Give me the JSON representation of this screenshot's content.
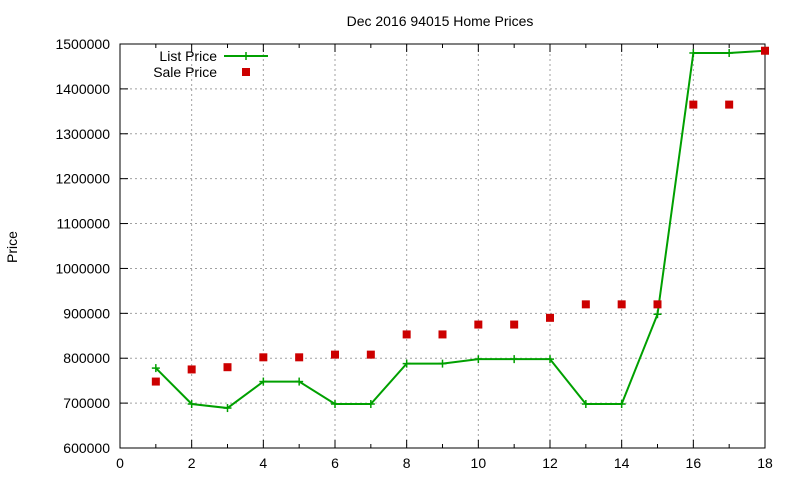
{
  "chart_data": {
    "type": "line",
    "title": "Dec 2016 94015 Home Prices",
    "xlabel": "",
    "ylabel": "Price",
    "xlim": [
      0,
      18
    ],
    "ylim": [
      600000,
      1500000
    ],
    "xticks": [
      0,
      2,
      4,
      6,
      8,
      10,
      12,
      14,
      16,
      18
    ],
    "yticks": [
      600000,
      700000,
      800000,
      900000,
      1000000,
      1100000,
      1200000,
      1300000,
      1400000,
      1500000
    ],
    "grid": true,
    "legend_position": "top-left",
    "series": [
      {
        "name": "List Price",
        "style": "line-with-plus-markers",
        "color": "#00a000",
        "x": [
          1,
          2,
          3,
          4,
          5,
          6,
          7,
          8,
          9,
          10,
          11,
          12,
          13,
          14,
          15,
          16,
          17,
          18
        ],
        "values": [
          778000,
          698000,
          689000,
          748000,
          748000,
          698000,
          698000,
          788000,
          788000,
          798000,
          798000,
          798000,
          698000,
          698000,
          898000,
          1480000,
          1480000,
          1485000
        ]
      },
      {
        "name": "Sale Price",
        "style": "square-markers",
        "color": "#cc0000",
        "x": [
          1,
          2,
          3,
          4,
          5,
          6,
          7,
          8,
          9,
          10,
          11,
          12,
          13,
          14,
          15,
          16,
          17,
          18
        ],
        "values": [
          748000,
          775000,
          780000,
          802000,
          802000,
          808000,
          808000,
          853000,
          853000,
          875000,
          875000,
          890000,
          920000,
          920000,
          920000,
          1365000,
          1365000,
          1485000
        ]
      }
    ]
  }
}
